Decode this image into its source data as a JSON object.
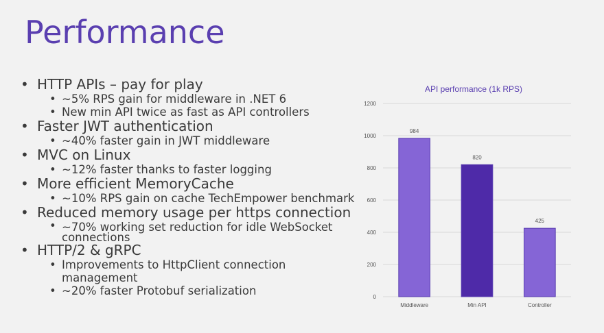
{
  "slide": {
    "title": "Performance",
    "bullets": [
      {
        "text": "HTTP APIs – pay for play",
        "sub": [
          "~5% RPS gain for middleware in .NET 6",
          "New min API twice as fast as API controllers"
        ]
      },
      {
        "text": "Faster JWT authentication",
        "sub": [
          "~40% faster gain in JWT middleware"
        ]
      },
      {
        "text": "MVC on Linux",
        "sub": [
          "~12% faster thanks to faster logging"
        ]
      },
      {
        "text": "More efficient MemoryCache",
        "sub": [
          "~10% RPS gain on cache TechEmpower benchmark"
        ]
      },
      {
        "text": "Reduced memory usage per https connection",
        "sub": [
          "~70% working set reduction for idle WebSocket connections"
        ]
      },
      {
        "text": "HTTP/2 & gRPC",
        "sub": [
          "Improvements to HttpClient connection management",
          "~20% faster Protobuf serialization"
        ]
      }
    ]
  },
  "chart_data": {
    "type": "bar",
    "title": "API performance (1k RPS)",
    "categories": [
      "Middleware",
      "Min API",
      "Controller"
    ],
    "values": [
      984,
      820,
      425
    ],
    "data_labels": [
      "984",
      "820",
      "425"
    ],
    "ylim": [
      0,
      1200
    ],
    "yticks": [
      0,
      200,
      400,
      600,
      800,
      1000,
      1200
    ],
    "grid": true,
    "colors": {
      "bar": "#8565d6",
      "bar_highlight": "#4e2aa8",
      "bar_edge": "#5a3fb0",
      "title": "#5a3fb0",
      "grid": "#d8d8d8",
      "axis_text": "#555555"
    },
    "highlight_index": 1
  }
}
